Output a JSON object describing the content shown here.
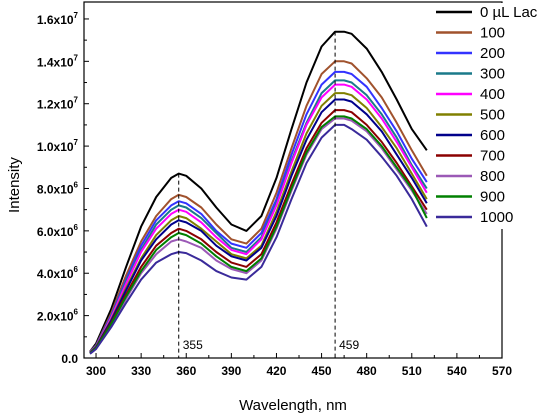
{
  "chart_data": {
    "type": "line",
    "xlabel": "Wavelength, nm",
    "ylabel": "Intensity",
    "xlim": [
      290,
      570
    ],
    "ylim": [
      0,
      16800000
    ],
    "x_ticks": [
      300,
      330,
      360,
      390,
      420,
      450,
      480,
      510,
      540,
      570
    ],
    "x_tick_labels": [
      "300",
      "330",
      "360",
      "390",
      "420",
      "450",
      "480",
      "510",
      "540",
      "570"
    ],
    "y_ticks": [
      0,
      2000000,
      4000000,
      6000000,
      8000000,
      10000000,
      12000000,
      14000000,
      16000000
    ],
    "y_tick_labels": [
      {
        "mant": "0.0",
        "exp": ""
      },
      {
        "mant": "2.0x10",
        "exp": "6"
      },
      {
        "mant": "4.0x10",
        "exp": "6"
      },
      {
        "mant": "6.0x10",
        "exp": "6"
      },
      {
        "mant": "8.0x10",
        "exp": "6"
      },
      {
        "mant": "1.0x10",
        "exp": "7"
      },
      {
        "mant": "1.2x10",
        "exp": "7"
      },
      {
        "mant": "1.4x10",
        "exp": "7"
      },
      {
        "mant": "1.6x10",
        "exp": "7"
      }
    ],
    "x": [
      296,
      300,
      310,
      320,
      330,
      340,
      350,
      355,
      360,
      370,
      380,
      390,
      400,
      410,
      420,
      430,
      440,
      450,
      459,
      465,
      470,
      480,
      490,
      500,
      510,
      520
    ],
    "series": [
      {
        "name": "0 µL Lac",
        "color": "#000000",
        "values": [
          0.3,
          0.68,
          2.3,
          4.3,
          6.2,
          7.6,
          8.5,
          8.7,
          8.6,
          8.0,
          7.1,
          6.3,
          6.0,
          6.7,
          8.5,
          10.8,
          13.0,
          14.7,
          15.4,
          15.4,
          15.3,
          14.6,
          13.5,
          12.2,
          10.8,
          9.8
        ]
      },
      {
        "name": "100",
        "color": "#a0522d",
        "values": [
          0.3,
          0.6,
          2.1,
          3.9,
          5.5,
          6.7,
          7.5,
          7.7,
          7.6,
          7.1,
          6.3,
          5.6,
          5.4,
          6.1,
          7.8,
          9.9,
          11.9,
          13.4,
          14.0,
          14.0,
          13.9,
          13.2,
          12.3,
          11.1,
          9.8,
          8.6
        ]
      },
      {
        "name": "200",
        "color": "#3333ff",
        "values": [
          0.28,
          0.58,
          2.0,
          3.7,
          5.3,
          6.5,
          7.2,
          7.4,
          7.3,
          6.8,
          6.0,
          5.4,
          5.2,
          5.9,
          7.5,
          9.6,
          11.5,
          12.9,
          13.5,
          13.5,
          13.4,
          12.8,
          11.8,
          10.7,
          9.4,
          8.3
        ]
      },
      {
        "name": "300",
        "color": "#1a7a8a",
        "values": [
          0.27,
          0.56,
          1.95,
          3.6,
          5.1,
          6.3,
          7.0,
          7.2,
          7.1,
          6.6,
          5.9,
          5.2,
          5.0,
          5.7,
          7.3,
          9.3,
          11.1,
          12.5,
          13.1,
          13.1,
          13.0,
          12.4,
          11.5,
          10.4,
          9.1,
          8.0
        ]
      },
      {
        "name": "400",
        "color": "#ff00ff",
        "values": [
          0.26,
          0.54,
          1.9,
          3.5,
          5.0,
          6.1,
          6.8,
          7.0,
          6.9,
          6.4,
          5.7,
          5.1,
          4.9,
          5.6,
          7.2,
          9.2,
          11.0,
          12.3,
          12.9,
          12.9,
          12.8,
          12.2,
          11.3,
          10.2,
          9.0,
          7.8
        ]
      },
      {
        "name": "500",
        "color": "#808000",
        "values": [
          0.25,
          0.52,
          1.8,
          3.3,
          4.7,
          5.8,
          6.5,
          6.7,
          6.6,
          6.1,
          5.5,
          4.9,
          4.7,
          5.3,
          6.9,
          8.8,
          10.6,
          11.9,
          12.5,
          12.5,
          12.4,
          11.8,
          10.9,
          9.9,
          8.7,
          7.5
        ]
      },
      {
        "name": "600",
        "color": "#00008b",
        "values": [
          0.24,
          0.5,
          1.75,
          3.2,
          4.6,
          5.6,
          6.3,
          6.5,
          6.4,
          6.0,
          5.3,
          4.8,
          4.6,
          5.2,
          6.7,
          8.6,
          10.3,
          11.6,
          12.2,
          12.2,
          12.1,
          11.5,
          10.7,
          9.6,
          8.5,
          7.3
        ]
      },
      {
        "name": "700",
        "color": "#8b0000",
        "values": [
          0.23,
          0.48,
          1.65,
          3.0,
          4.3,
          5.3,
          5.9,
          6.1,
          6.0,
          5.6,
          5.0,
          4.5,
          4.3,
          4.9,
          6.4,
          8.2,
          9.9,
          11.1,
          11.7,
          11.7,
          11.6,
          11.0,
          10.2,
          9.2,
          8.1,
          7.0
        ]
      },
      {
        "name": "800",
        "color": "#9b59b6",
        "values": [
          0.22,
          0.45,
          1.55,
          2.8,
          4.0,
          4.9,
          5.5,
          5.6,
          5.5,
          5.2,
          4.6,
          4.2,
          4.0,
          4.6,
          6.1,
          7.9,
          9.6,
          10.8,
          11.3,
          11.3,
          11.2,
          10.7,
          9.9,
          8.9,
          7.9,
          6.8
        ]
      },
      {
        "name": "900",
        "color": "#008000",
        "values": [
          0.22,
          0.47,
          1.6,
          2.9,
          4.1,
          5.1,
          5.7,
          5.9,
          5.8,
          5.4,
          4.8,
          4.3,
          4.1,
          4.7,
          6.2,
          8.0,
          9.7,
          10.9,
          11.4,
          11.4,
          11.3,
          10.8,
          10.0,
          9.0,
          8.0,
          6.6
        ]
      },
      {
        "name": "1000",
        "color": "#3a2a9a",
        "values": [
          0.2,
          0.42,
          1.45,
          2.6,
          3.7,
          4.5,
          4.9,
          5.0,
          4.95,
          4.6,
          4.1,
          3.8,
          3.7,
          4.3,
          5.7,
          7.5,
          9.2,
          10.4,
          11.0,
          11.0,
          10.8,
          10.3,
          9.5,
          8.6,
          7.5,
          6.2
        ]
      }
    ],
    "values_unit_multiplier": 1000000,
    "annotations": [
      {
        "label": "355",
        "x": 355
      },
      {
        "label": "459",
        "x": 459
      }
    ],
    "legend_position": "top-right",
    "grid": false
  }
}
